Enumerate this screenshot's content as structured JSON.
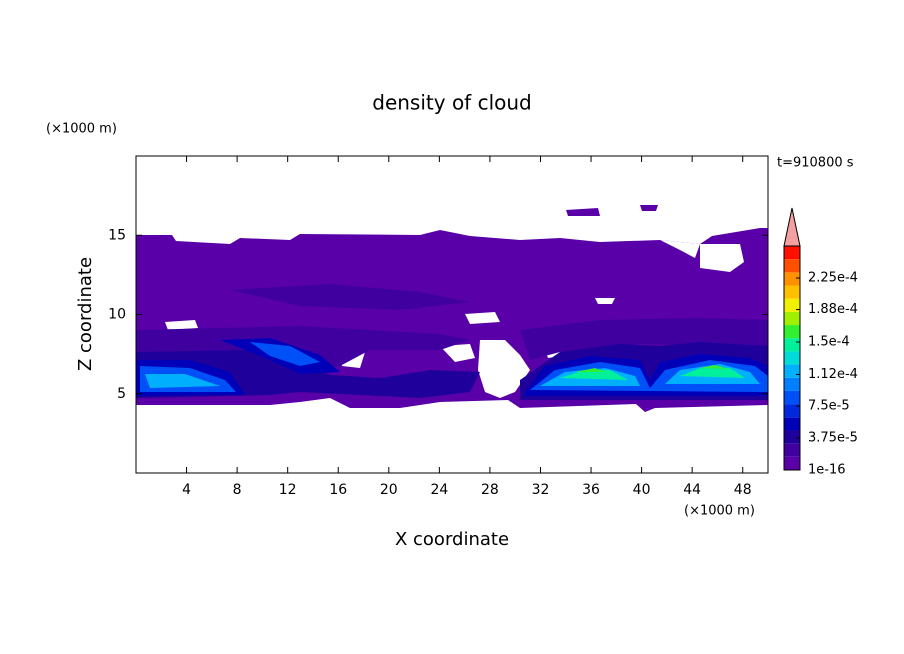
{
  "chart_data": {
    "type": "contour",
    "title": "density of cloud",
    "xlabel": "X coordinate",
    "ylabel": "Z coordinate",
    "xunit": "(×1000 m)",
    "yunit": "(×1000 m)",
    "time_label": "t=910800 s",
    "xlim": [
      0,
      50
    ],
    "xticks": [
      4,
      8,
      12,
      16,
      20,
      24,
      28,
      32,
      36,
      40,
      44,
      48
    ],
    "ylim": [
      0,
      20
    ],
    "yticks": [
      5,
      10,
      15
    ],
    "colorbar": {
      "clim": [
        1e-16,
        0.0002625
      ],
      "colors": [
        "#5a00a8",
        "#4000a0",
        "#20009a",
        "#0000b8",
        "#0028dc",
        "#0050f8",
        "#0080ff",
        "#00b0ff",
        "#00dcd8",
        "#00f09c",
        "#30f030",
        "#a0f000",
        "#f0f000",
        "#ffc000",
        "#ff9000",
        "#ff5000",
        "#ff1000"
      ],
      "extend_color": "#f4a0a0",
      "ticks": [
        {
          "value": 1e-16,
          "label": "1e-16"
        },
        {
          "value": 3.75e-05,
          "label": "3.75e-5"
        },
        {
          "value": 7.5e-05,
          "label": "7.5e-5"
        },
        {
          "value": 0.000112,
          "label": "1.12e-4"
        },
        {
          "value": 0.00015,
          "label": "1.5e-4"
        },
        {
          "value": 0.000188,
          "label": "1.88e-4"
        },
        {
          "value": 0.000225,
          "label": "2.25e-4"
        }
      ]
    }
  }
}
